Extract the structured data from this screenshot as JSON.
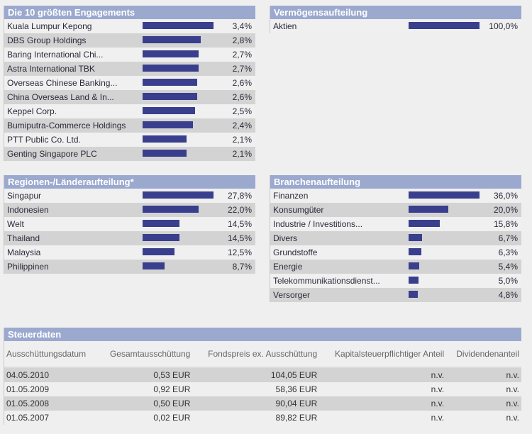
{
  "engagements": {
    "title": "Die 10 größten Engagements",
    "items": [
      {
        "label": "Kuala Lumpur Kepong",
        "value": 3.4,
        "text": "3,4%"
      },
      {
        "label": "DBS Group Holdings",
        "value": 2.8,
        "text": "2,8%"
      },
      {
        "label": "Baring International Chi...",
        "value": 2.7,
        "text": "2,7%"
      },
      {
        "label": "Astra International TBK",
        "value": 2.7,
        "text": "2,7%"
      },
      {
        "label": "Overseas Chinese Banking...",
        "value": 2.6,
        "text": "2,6%"
      },
      {
        "label": "China Overseas Land & In...",
        "value": 2.6,
        "text": "2,6%"
      },
      {
        "label": "Keppel Corp.",
        "value": 2.5,
        "text": "2,5%"
      },
      {
        "label": "Bumiputra-Commerce Holdings",
        "value": 2.4,
        "text": "2,4%"
      },
      {
        "label": "PTT Public Co. Ltd.",
        "value": 2.1,
        "text": "2,1%"
      },
      {
        "label": "Genting Singapore PLC",
        "value": 2.1,
        "text": "2,1%"
      }
    ]
  },
  "vermoegen": {
    "title": "Vermögensaufteilung",
    "items": [
      {
        "label": "Aktien",
        "value": 100,
        "text": "100,0%"
      }
    ]
  },
  "regionen": {
    "title": "Regionen-/Länderaufteilung*",
    "items": [
      {
        "label": "Singapur",
        "value": 27.8,
        "text": "27,8%"
      },
      {
        "label": "Indonesien",
        "value": 22.0,
        "text": "22,0%"
      },
      {
        "label": "Welt",
        "value": 14.5,
        "text": "14,5%"
      },
      {
        "label": "Thailand",
        "value": 14.5,
        "text": "14,5%"
      },
      {
        "label": "Malaysia",
        "value": 12.5,
        "text": "12,5%"
      },
      {
        "label": "Philippinen",
        "value": 8.7,
        "text": "8,7%"
      }
    ]
  },
  "branchen": {
    "title": "Branchenaufteilung",
    "items": [
      {
        "label": "Finanzen",
        "value": 36.0,
        "text": "36,0%"
      },
      {
        "label": "Konsumgüter",
        "value": 20.0,
        "text": "20,0%"
      },
      {
        "label": "Industrie / Investitions...",
        "value": 15.8,
        "text": "15,8%"
      },
      {
        "label": "Divers",
        "value": 6.7,
        "text": "6,7%"
      },
      {
        "label": "Grundstoffe",
        "value": 6.3,
        "text": "6,3%"
      },
      {
        "label": "Energie",
        "value": 5.4,
        "text": "5,4%"
      },
      {
        "label": "Telekommunikationsdienst...",
        "value": 5.0,
        "text": "5,0%"
      },
      {
        "label": "Versorger",
        "value": 4.8,
        "text": "4,8%"
      }
    ]
  },
  "steuer": {
    "title": "Steuerdaten",
    "columns": [
      "Ausschüttungsdatum",
      "Gesamtausschüttung",
      "Fondspreis ex. Ausschüttung",
      "Kapitalsteuerpflichtiger Anteil",
      "Dividendenanteil"
    ],
    "rows": [
      [
        "04.05.2010",
        "0,53 EUR",
        "104,05 EUR",
        "n.v.",
        "n.v."
      ],
      [
        "01.05.2009",
        "0,92 EUR",
        "58,36 EUR",
        "n.v.",
        "n.v."
      ],
      [
        "01.05.2008",
        "0,50 EUR",
        "90,04 EUR",
        "n.v.",
        "n.v."
      ],
      [
        "01.05.2007",
        "0,02 EUR",
        "89,82 EUR",
        "n.v.",
        "n.v."
      ]
    ]
  }
}
